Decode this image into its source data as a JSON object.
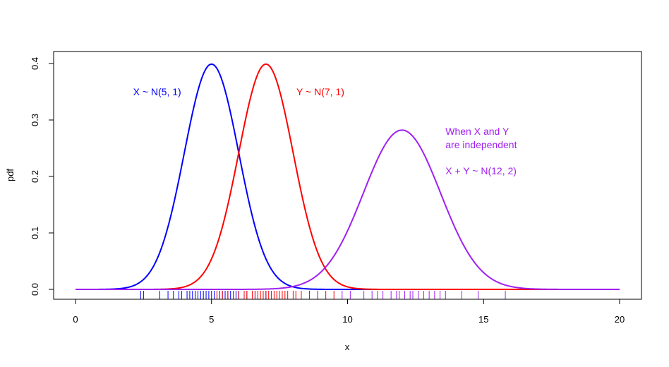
{
  "chart_data": {
    "type": "line",
    "title": "",
    "xlabel": "x",
    "ylabel": "pdf",
    "xlim": [
      0,
      20
    ],
    "ylim": [
      0,
      0.4
    ],
    "xticks": [
      "0",
      "5",
      "10",
      "15",
      "20"
    ],
    "xtick_values": [
      0,
      5,
      10,
      15,
      20
    ],
    "yticks": [
      "0.0",
      "0.1",
      "0.2",
      "0.3",
      "0.4"
    ],
    "ytick_values": [
      0,
      0.1,
      0.2,
      0.3,
      0.4
    ],
    "series": [
      {
        "name": "X ~ N(5, 1)",
        "mean": 5,
        "variance": 1,
        "color": "#0000ff"
      },
      {
        "name": "Y ~ N(7, 1)",
        "mean": 7,
        "variance": 1,
        "color": "#ff0000"
      },
      {
        "name": "X + Y ~ N(12, 2)",
        "mean": 12,
        "variance": 2,
        "color": "#a020f0"
      }
    ],
    "rug": {
      "X": {
        "color": "#0000ff",
        "values": [
          2.4,
          2.5,
          3.1,
          3.4,
          3.6,
          3.8,
          3.9,
          4.1,
          4.2,
          4.3,
          4.4,
          4.5,
          4.6,
          4.7,
          4.8,
          4.9,
          5.0,
          5.1,
          5.2,
          5.3,
          5.4,
          5.5,
          5.6,
          5.7,
          5.8,
          5.9,
          6.0,
          6.3,
          6.6,
          7.0
        ]
      },
      "Y": {
        "color": "#ff0000",
        "values": [
          5.2,
          5.4,
          5.6,
          5.8,
          6.0,
          6.2,
          6.3,
          6.5,
          6.6,
          6.7,
          6.8,
          6.9,
          7.0,
          7.1,
          7.2,
          7.3,
          7.4,
          7.5,
          7.6,
          7.7,
          7.8,
          8.0,
          8.1,
          8.3,
          8.6,
          8.9,
          9.2,
          9.5
        ]
      },
      "XplusY": {
        "color": "#a020f0",
        "values": [
          8.9,
          9.8,
          10.1,
          10.6,
          10.9,
          11.1,
          11.3,
          11.6,
          11.8,
          11.9,
          12.1,
          12.3,
          12.4,
          12.6,
          12.8,
          13.0,
          13.2,
          13.4,
          13.6,
          14.2,
          14.8,
          15.8
        ]
      }
    },
    "annotations": [
      {
        "text": "X ~ N(5, 1)",
        "x": 3.0,
        "y": 0.35,
        "color": "#0000ff"
      },
      {
        "text": "Y ~ N(7, 1)",
        "x": 9.0,
        "y": 0.35,
        "color": "#ff0000"
      },
      {
        "text": "When X and Y",
        "x": 13.6,
        "y": 0.28,
        "color": "#a020f0"
      },
      {
        "text": "are independent",
        "x": 13.6,
        "y": 0.256,
        "color": "#a020f0"
      },
      {
        "text": "X + Y ~ N(12, 2)",
        "x": 13.6,
        "y": 0.21,
        "color": "#a020f0"
      }
    ]
  }
}
